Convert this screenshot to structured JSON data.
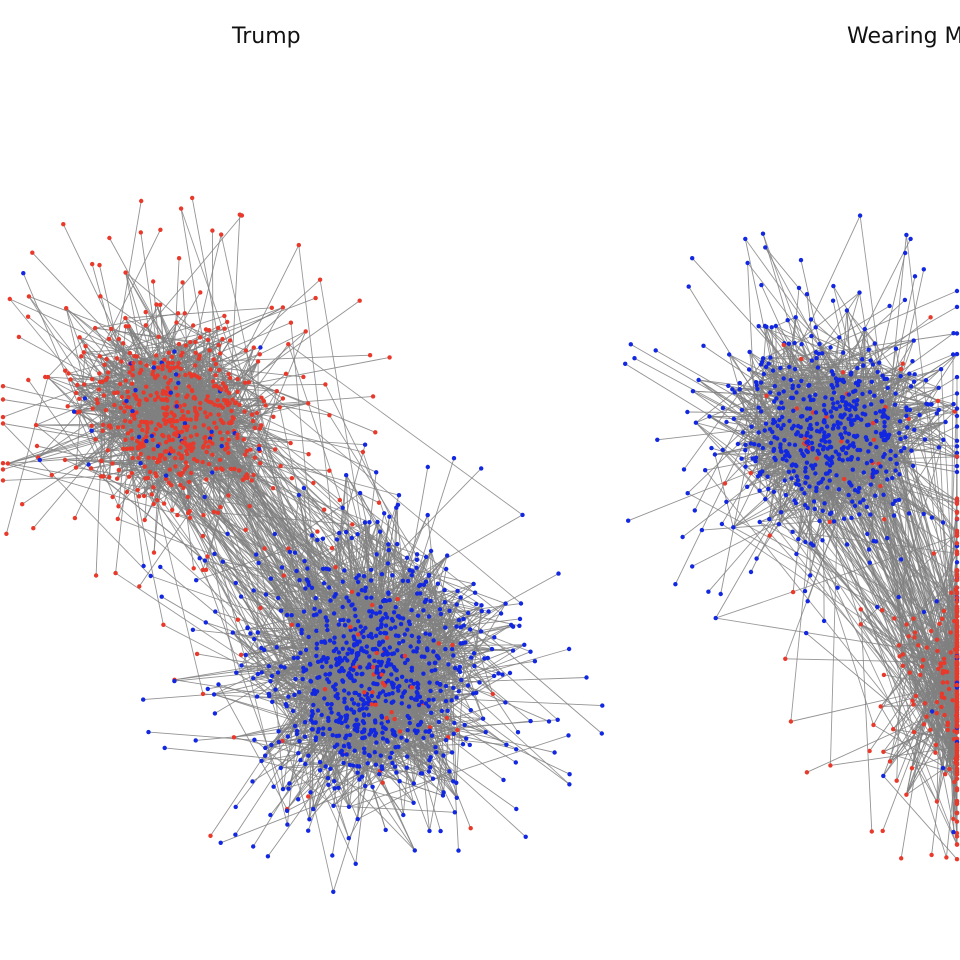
{
  "panels": [
    {
      "title": "Trump"
    },
    {
      "title": "Wearing M"
    }
  ],
  "colors": {
    "edge": "#808080",
    "group_red": "#e8392a",
    "group_blue": "#1227e0",
    "background": "#ffffff"
  }
}
